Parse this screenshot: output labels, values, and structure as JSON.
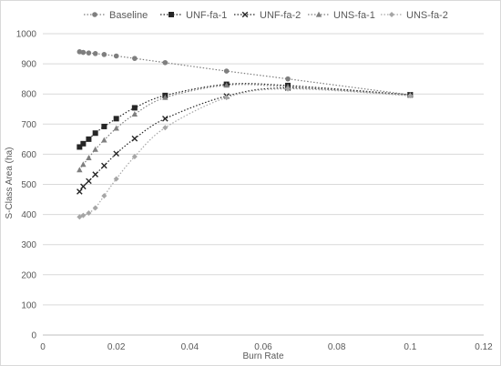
{
  "chart_data": {
    "type": "scatter",
    "xlabel": "Burn Rate",
    "ylabel": "S-Class Area (ha)",
    "xlim": [
      0,
      0.12
    ],
    "ylim": [
      0,
      1000
    ],
    "x_ticks": [
      0,
      0.02,
      0.04,
      0.06,
      0.08,
      0.1,
      0.12
    ],
    "x_tick_labels": [
      "0",
      "0.02",
      "0.04",
      "0.06",
      "0.08",
      "0.1",
      "0.12"
    ],
    "y_ticks": [
      0,
      100,
      200,
      300,
      400,
      500,
      600,
      700,
      800,
      900,
      1000
    ],
    "y_tick_labels": [
      "0",
      "100",
      "200",
      "300",
      "400",
      "500",
      "600",
      "700",
      "800",
      "900",
      "1000"
    ],
    "grid": "horizontal",
    "legend_position": "top",
    "lines": "dotted smoothed",
    "x": [
      0.01,
      0.011,
      0.0125,
      0.0143,
      0.0167,
      0.02,
      0.025,
      0.0333,
      0.05,
      0.0667,
      0.1
    ],
    "series": [
      {
        "name": "Baseline",
        "marker": "circle",
        "color": "#7f7f7f",
        "values": [
          940,
          938,
          936,
          934,
          931,
          926,
          918,
          904,
          876,
          850,
          797
        ]
      },
      {
        "name": "UNF-fa-1",
        "marker": "square",
        "color": "#262626",
        "values": [
          624,
          635,
          650,
          670,
          692,
          718,
          754,
          795,
          832,
          828,
          797
        ]
      },
      {
        "name": "UNF-fa-2",
        "marker": "x",
        "color": "#262626",
        "values": [
          476,
          493,
          511,
          533,
          562,
          602,
          652,
          718,
          793,
          820,
          797
        ]
      },
      {
        "name": "UNS-fa-1",
        "marker": "triangle",
        "color": "#7f7f7f",
        "values": [
          548,
          566,
          588,
          616,
          647,
          686,
          733,
          788,
          829,
          824,
          796
        ]
      },
      {
        "name": "UNS-fa-2",
        "marker": "diamond",
        "color": "#a6a6a6",
        "values": [
          392,
          397,
          405,
          422,
          462,
          518,
          592,
          688,
          788,
          817,
          794
        ]
      }
    ]
  }
}
